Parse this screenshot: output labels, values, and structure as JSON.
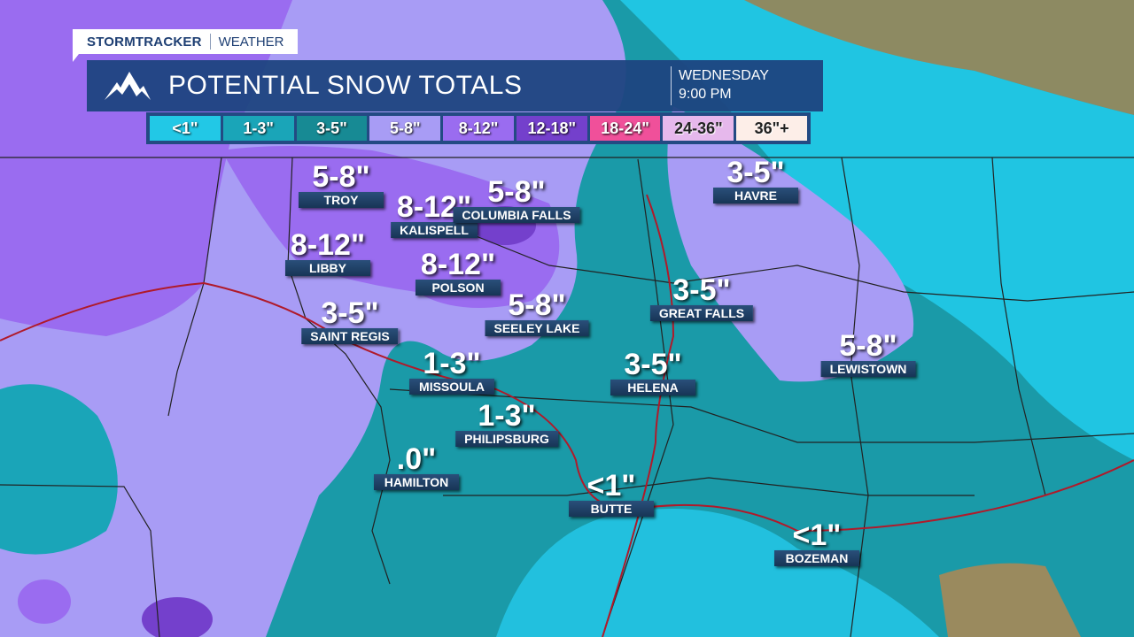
{
  "brand": {
    "name": "STORMTRACKER",
    "section": "WEATHER"
  },
  "header": {
    "icon": "mountain-icon",
    "title": "POTENTIAL SNOW TOTALS",
    "day": "WEDNESDAY",
    "time": "9:00 PM"
  },
  "legend": [
    {
      "label": "<1\"",
      "color": "#22c8e6"
    },
    {
      "label": "1-3\"",
      "color": "#1aa5b8"
    },
    {
      "label": "3-5\"",
      "color": "#178a94"
    },
    {
      "label": "5-8\"",
      "color": "#a89cf5"
    },
    {
      "label": "8-12\"",
      "color": "#9a6cf0"
    },
    {
      "label": "12-18\"",
      "color": "#7440cc"
    },
    {
      "label": "18-24\"",
      "color": "#f0509a"
    },
    {
      "label": "24-36\"",
      "color": "#e6b8ec"
    },
    {
      "label": "36\"+",
      "color": "#fdeee8"
    }
  ],
  "cities": [
    {
      "name": "TROY",
      "total": "5-8\""
    },
    {
      "name": "KALISPELL",
      "total": "8-12\""
    },
    {
      "name": "COLUMBIA FALLS",
      "total": "5-8\""
    },
    {
      "name": "HAVRE",
      "total": "3-5\""
    },
    {
      "name": "LIBBY",
      "total": "8-12\""
    },
    {
      "name": "POLSON",
      "total": "8-12\""
    },
    {
      "name": "SEELEY LAKE",
      "total": "5-8\""
    },
    {
      "name": "GREAT FALLS",
      "total": "3-5\""
    },
    {
      "name": "SAINT REGIS",
      "total": "3-5\""
    },
    {
      "name": "LEWISTOWN",
      "total": "5-8\""
    },
    {
      "name": "MISSOULA",
      "total": "1-3\""
    },
    {
      "name": "HELENA",
      "total": "3-5\""
    },
    {
      "name": "PHILIPSBURG",
      "total": "1-3\""
    },
    {
      "name": "HAMILTON",
      "total": ".0\""
    },
    {
      "name": "BUTTE",
      "total": "<1\""
    },
    {
      "name": "BOZEMAN",
      "total": "<1\""
    }
  ]
}
